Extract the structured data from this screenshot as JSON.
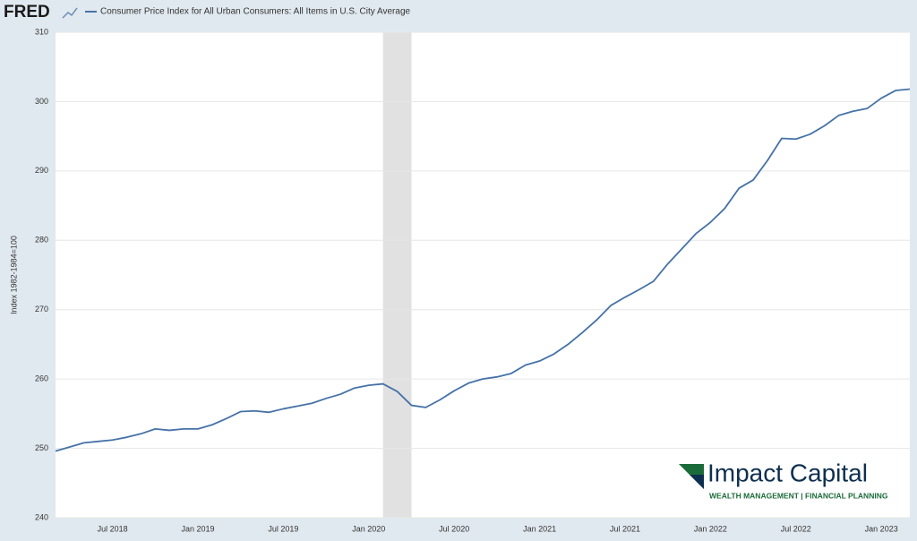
{
  "logo": "FRED",
  "watermark": {
    "title": "Impact Capital",
    "subtitle": "WEALTH MANAGEMENT | FINANCIAL PLANNING"
  },
  "chart_data": {
    "type": "line",
    "ylabel": "Index 1982-1984=100",
    "categories": [
      null,
      null,
      null,
      null,
      "Jul 2018",
      null,
      null,
      null,
      null,
      null,
      "Jan 2019",
      null,
      null,
      null,
      null,
      null,
      "Jul 2019",
      null,
      null,
      null,
      null,
      null,
      "Jan 2020",
      null,
      null,
      null,
      null,
      null,
      "Jul 2020",
      null,
      null,
      null,
      null,
      null,
      "Jan 2021",
      null,
      null,
      null,
      null,
      null,
      "Jul 2021",
      null,
      null,
      null,
      null,
      null,
      "Jan 2022",
      null,
      null,
      null,
      null,
      null,
      "Jul 2022",
      null,
      null,
      null,
      null,
      null,
      "Jan 2023",
      null,
      null
    ],
    "series": [
      {
        "name": "Consumer Price Index for All Urban Consumers: All Items in U.S. City Average",
        "color": "#4572a7",
        "values": [
          249.6,
          250.2,
          250.8,
          251.0,
          251.2,
          251.6,
          252.1,
          252.8,
          252.6,
          252.8,
          252.8,
          253.4,
          254.3,
          255.3,
          255.4,
          255.2,
          255.7,
          256.1,
          256.5,
          257.2,
          257.8,
          258.7,
          259.1,
          259.3,
          258.2,
          256.2,
          255.9,
          257.0,
          258.3,
          259.4,
          260.0,
          260.3,
          260.8,
          262.0,
          262.6,
          263.6,
          265.0,
          266.7,
          268.5,
          270.6,
          271.8,
          272.9,
          274.1,
          276.6,
          278.8,
          281.0,
          282.6,
          284.6,
          287.5,
          288.7,
          291.5,
          294.7,
          294.6,
          295.3,
          296.5,
          298.0,
          298.6,
          299.0,
          300.5,
          301.6,
          301.8
        ]
      }
    ],
    "shaded_ranges": [
      [
        23,
        25
      ]
    ],
    "ylim": [
      240,
      310
    ],
    "yticks": [
      240,
      250,
      260,
      270,
      280,
      290,
      300,
      310
    ],
    "grid": true
  }
}
